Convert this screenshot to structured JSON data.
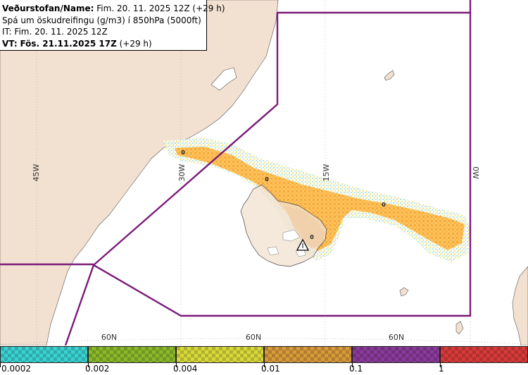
{
  "header": {
    "line1_label": "Veðurstofan/Name:",
    "line1_value": "Fim. 20. 11. 2025 12Z (+29 h)",
    "line2": "Spá um öskudreifingu (g/m3) í 850hPa (5000ft)",
    "line3": "IT: Fim. 20. 11. 2025 12Z",
    "line4_label": "VT:",
    "line4_value": "Fös. 21.11.2025 17Z",
    "line4_suffix": "(+29 h)"
  },
  "map": {
    "longitude_labels": [
      "45W",
      "30W",
      "15W",
      "0W"
    ],
    "latitude_labels": [
      "60N",
      "60N",
      "60N"
    ],
    "concentration_labels": [
      "0",
      "0",
      "0",
      "0"
    ],
    "colors": {
      "sea": "#ffffff",
      "land": "#f2e1d0",
      "boundary": "#7a1a7a",
      "ash_low": "#fdc45c",
      "ash_mid": "#f7a03a",
      "ash_high": "#d9822b"
    }
  },
  "legend": {
    "tick_labels": [
      "0.0002",
      "0.002",
      "0.004",
      "0.01",
      "0.1",
      "1"
    ],
    "swatches": [
      {
        "name": "cyan",
        "color": "#3ad1d1"
      },
      {
        "name": "olive",
        "color": "#8ab82b"
      },
      {
        "name": "yellow",
        "color": "#d8d83a"
      },
      {
        "name": "orange",
        "color": "#d89a3a"
      },
      {
        "name": "purple",
        "color": "#8a3a9a"
      },
      {
        "name": "red",
        "color": "#d83a3a"
      }
    ]
  }
}
